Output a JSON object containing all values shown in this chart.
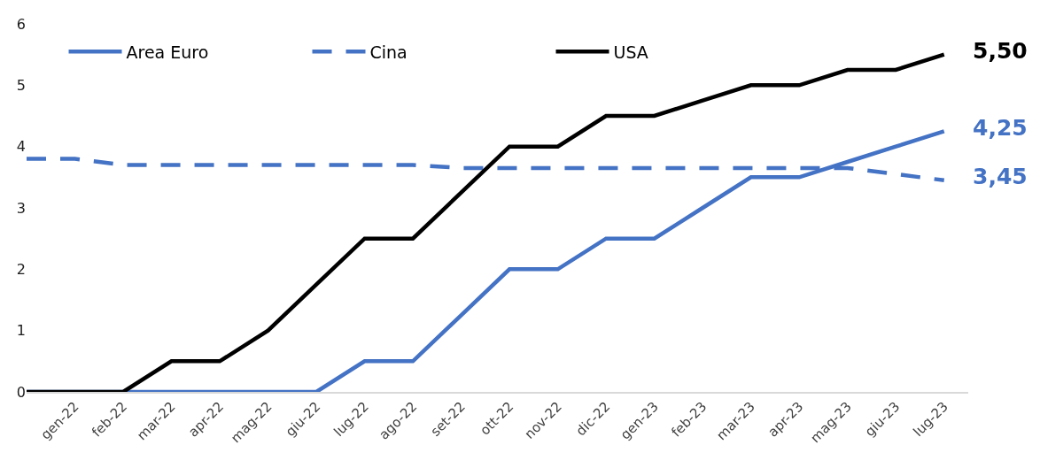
{
  "chart_data": {
    "type": "line",
    "categories": [
      null,
      "gen-22",
      "feb-22",
      "mar-22",
      "apr-22",
      "mag-22",
      "giu-22",
      "lug-22",
      "ago-22",
      "set-22",
      "ott-22",
      "nov-22",
      "dic-22",
      "gen-23",
      "feb-23",
      "mar-23",
      "apr-23",
      "mag-23",
      "giu-23",
      "lug-23"
    ],
    "ylim": [
      0,
      6
    ],
    "yticks": [
      0,
      1,
      2,
      3,
      4,
      5,
      6
    ],
    "legend": "top left",
    "series": [
      {
        "name": "Area Euro",
        "color": "#4472c4",
        "line_style": "solid",
        "values": [
          0,
          0,
          0,
          0,
          0,
          0,
          0,
          0.5,
          0.5,
          1.25,
          2,
          2,
          2.5,
          2.5,
          3,
          3.5,
          3.5,
          3.75,
          4,
          4.25
        ],
        "value_labels": [
          null,
          null,
          null,
          null,
          null,
          null,
          null,
          null,
          null,
          null,
          null,
          null,
          null,
          null,
          null,
          null,
          null,
          null,
          null,
          "4,25"
        ]
      },
      {
        "name": "Cina",
        "color": "#4472c4",
        "line_style": "dashed",
        "values": [
          3.8,
          3.8,
          3.7,
          3.7,
          3.7,
          3.7,
          3.7,
          3.7,
          3.7,
          3.65,
          3.65,
          3.65,
          3.65,
          3.65,
          3.65,
          3.65,
          3.65,
          3.65,
          3.55,
          3.45
        ],
        "value_labels": [
          null,
          null,
          null,
          null,
          null,
          null,
          null,
          null,
          null,
          null,
          null,
          null,
          null,
          null,
          null,
          null,
          null,
          null,
          null,
          "3,45"
        ]
      },
      {
        "name": "USA",
        "color": "#000000",
        "line_style": "solid",
        "values": [
          0,
          0,
          0,
          0.5,
          0.5,
          1,
          1.75,
          2.5,
          2.5,
          3.25,
          4,
          4,
          4.5,
          4.5,
          4.75,
          5,
          5,
          5.25,
          5.25,
          5.5
        ],
        "value_labels": [
          null,
          null,
          null,
          null,
          null,
          null,
          null,
          null,
          null,
          null,
          null,
          null,
          null,
          null,
          null,
          null,
          null,
          null,
          null,
          "5,50"
        ]
      }
    ]
  }
}
